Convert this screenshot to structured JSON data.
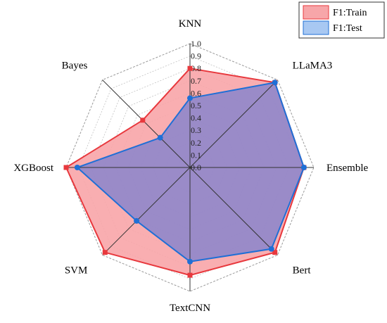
{
  "chart_data": {
    "type": "radar",
    "title": "",
    "axes": [
      "KNN",
      "LLaMA3",
      "Ensemble",
      "Bert",
      "TextCNN",
      "SVM",
      "XGBoost",
      "Bayes"
    ],
    "rlim": [
      0,
      1.0
    ],
    "ticks": [
      "0.0",
      "0.1",
      "0.2",
      "0.3",
      "0.4",
      "0.5",
      "0.6",
      "0.7",
      "0.8",
      "0.9",
      "1.0"
    ],
    "grid": true,
    "legend": {
      "placement": "top-right",
      "entries": [
        "F1:Train",
        "F1:Test"
      ]
    },
    "series": [
      {
        "name": "F1:Train",
        "values": [
          0.8,
          0.97,
          0.92,
          0.97,
          0.87,
          0.97,
          1.0,
          0.54
        ],
        "line_color": "#e8383d",
        "fill_color": "#f8a5a8"
      },
      {
        "name": "F1:Test",
        "values": [
          0.56,
          0.97,
          0.92,
          0.93,
          0.76,
          0.61,
          0.91,
          0.34
        ],
        "line_color": "#1f6fd6",
        "fill_color": "#7a7fd0"
      }
    ]
  }
}
